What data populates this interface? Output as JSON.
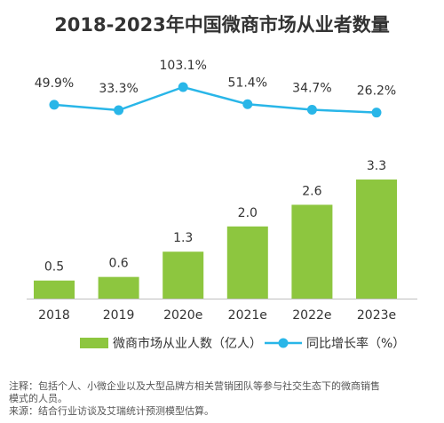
{
  "chart_data": {
    "type": "bar",
    "title": "2018-2023年中国微商市场从业者数量",
    "categories": [
      "2018",
      "2019",
      "2020e",
      "2021e",
      "2022e",
      "2023e"
    ],
    "series": [
      {
        "name": "微商市场从业人数（亿人）",
        "type": "bar",
        "values": [
          0.5,
          0.6,
          1.3,
          2.0,
          2.6,
          3.3
        ],
        "labels": [
          "0.5",
          "0.6",
          "1.3",
          "2.0",
          "2.6",
          "3.3"
        ]
      },
      {
        "name": "同比增长率（%）",
        "type": "line",
        "values": [
          49.9,
          33.3,
          103.1,
          51.4,
          34.7,
          26.2
        ],
        "labels": [
          "49.9%",
          "33.3%",
          "103.1%",
          "51.4%",
          "34.7%",
          "26.2%"
        ]
      }
    ],
    "legend_position": "bottom",
    "grid": false
  },
  "colors": {
    "bar": "#8DC63F",
    "line": "#29B6E8",
    "text": "#333333",
    "note": "#555555"
  },
  "notes": {
    "note_line1": "注释：包括个人、小微企业以及大型品牌方相关营销团队等参与社交生态下的微商销售",
    "note_line2": "模式的人员。",
    "source": "来源：结合行业访谈及艾瑞统计预测模型估算。"
  }
}
